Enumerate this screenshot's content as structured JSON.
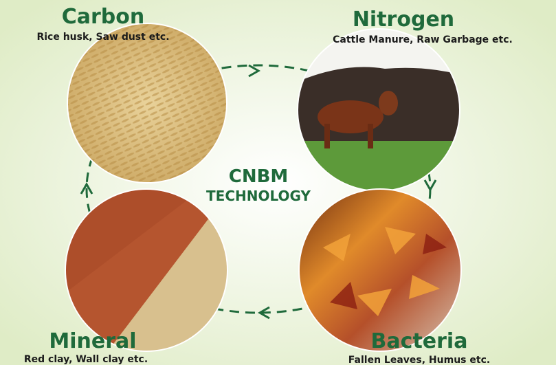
{
  "center": {
    "title": "CNBM",
    "subtitle": "TECHNOLOGY"
  },
  "nodes": [
    {
      "label": "Carbon",
      "description": "Rice husk, Saw dust etc."
    },
    {
      "label": "Nitrogen",
      "description": "Cattle Manure, Raw Garbage etc."
    },
    {
      "label": "Bacteria",
      "description": "Fallen Leaves, Humus etc."
    },
    {
      "label": "Mineral",
      "description": "Red clay, Wall clay etc."
    }
  ]
}
